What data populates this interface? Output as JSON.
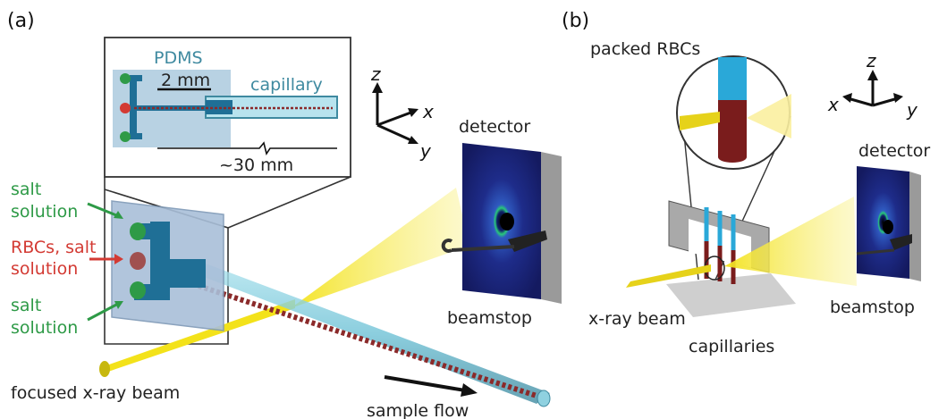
{
  "panel_a": {
    "label": "(a)",
    "inset": {
      "material": "PDMS",
      "scale_label": "2 mm",
      "capillary_label": "capillary",
      "length_label": "~30 mm"
    },
    "inlets": {
      "top": "salt\nsolution",
      "middle": "RBCs, salt\nsolution",
      "bottom": "salt\nsolution"
    },
    "detector_label": "detector",
    "beamstop_label": "beamstop",
    "beam_label": "focused x-ray beam",
    "flow_label": "sample flow",
    "axes": {
      "z": "z",
      "x": "x",
      "y": "y"
    }
  },
  "panel_b": {
    "label": "(b)",
    "packed_label": "packed RBCs",
    "detector_label": "detector",
    "beamstop_label": "beamstop",
    "beam_label": "x-ray beam",
    "capillaries_label": "capillaries",
    "axes": {
      "z": "z",
      "x": "x",
      "y": "y"
    }
  },
  "colors": {
    "inlet_green": "#2e9a47",
    "inlet_red": "#d33a33",
    "capillary_teal": "#3f8aa0",
    "beam_yellow": "#f3e21a"
  }
}
